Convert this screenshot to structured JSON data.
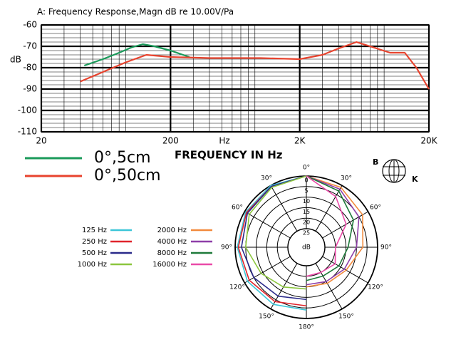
{
  "chart_data": [
    {
      "type": "line",
      "title": "A: Frequency Response,Magn dB re 10.00V/Pa",
      "ylabel": "dB",
      "xlabel": "Hz",
      "annotation": "FREQUENCY IN Hz",
      "xscale": "log",
      "grid": true,
      "xlim": [
        20,
        20000
      ],
      "xticks": [
        20,
        200,
        {
          "value": 2000,
          "label": "2K"
        },
        {
          "value": 20000,
          "label": "20K"
        }
      ],
      "ylim": [
        -110,
        -60
      ],
      "yticks": [
        -60,
        -70,
        -80,
        -90,
        -100,
        -110
      ],
      "series": [
        {
          "name": "0°,5cm",
          "color": "#1a9a5a",
          "x": [
            43,
            60,
            80,
            100,
            122,
            150,
            200,
            280
          ],
          "values": [
            -79,
            -76,
            -73,
            -70.5,
            -69,
            -70,
            -72,
            -75
          ]
        },
        {
          "name": "0°,50cm",
          "color": "#e8432e",
          "x": [
            40,
            60,
            90,
            130,
            200,
            400,
            1000,
            2000,
            3000,
            4000,
            5500,
            7000,
            10000,
            13000,
            16000,
            20000
          ],
          "values": [
            -86.5,
            -82,
            -77.5,
            -74,
            -75,
            -75.5,
            -75.5,
            -76,
            -74,
            -71,
            -68,
            -70,
            -73,
            -73,
            -80,
            -90
          ]
        }
      ]
    },
    {
      "type": "polar",
      "rlabel": "dB",
      "rlim": [
        25,
        0
      ],
      "rticks": [
        0,
        5,
        10,
        15,
        20,
        25
      ],
      "theta": [
        0,
        30,
        60,
        90,
        120,
        150,
        180
      ],
      "thetaticks": [
        {
          "value": 0,
          "label": "0°"
        },
        {
          "value": 30,
          "label": "30°"
        },
        {
          "value": 60,
          "label": "60°"
        },
        {
          "value": 90,
          "label": "90°"
        },
        {
          "value": 120,
          "label": "120°"
        },
        {
          "value": 150,
          "label": "150°"
        },
        {
          "value": 180,
          "label": "180°"
        }
      ],
      "series": [
        {
          "name": "125 Hz",
          "color": "#3cc6d8",
          "side": "left",
          "values": [
            0,
            0,
            0.5,
            1,
            1.5,
            2.5,
            4
          ]
        },
        {
          "name": "250 Hz",
          "color": "#e0242c",
          "side": "left",
          "values": [
            0,
            0.5,
            1,
            1.5,
            2.5,
            4,
            6
          ]
        },
        {
          "name": "500 Hz",
          "color": "#2a2a8a",
          "side": "left",
          "values": [
            0,
            0.5,
            1.5,
            3,
            5,
            7,
            9
          ]
        },
        {
          "name": "1000 Hz",
          "color": "#8cc63e",
          "side": "left",
          "values": [
            0,
            1,
            2.5,
            5,
            9,
            12,
            14
          ]
        },
        {
          "name": "2000 Hz",
          "color": "#f28a3c",
          "side": "right",
          "values": [
            0,
            1,
            3,
            7,
            12,
            14,
            15
          ]
        },
        {
          "name": "4000 Hz",
          "color": "#8e3fa8",
          "side": "right",
          "values": [
            0,
            2,
            5,
            10,
            13,
            15,
            16
          ]
        },
        {
          "name": "8000 Hz",
          "color": "#1f7a3a",
          "side": "right",
          "values": [
            0,
            3,
            8,
            14,
            16,
            18,
            18
          ]
        },
        {
          "name": "16000 Hz",
          "color": "#ea4aa8",
          "side": "right",
          "values": [
            0,
            6,
            12,
            20,
            18,
            20,
            20
          ]
        }
      ]
    }
  ],
  "logo": {
    "left": "B",
    "right": "K"
  }
}
